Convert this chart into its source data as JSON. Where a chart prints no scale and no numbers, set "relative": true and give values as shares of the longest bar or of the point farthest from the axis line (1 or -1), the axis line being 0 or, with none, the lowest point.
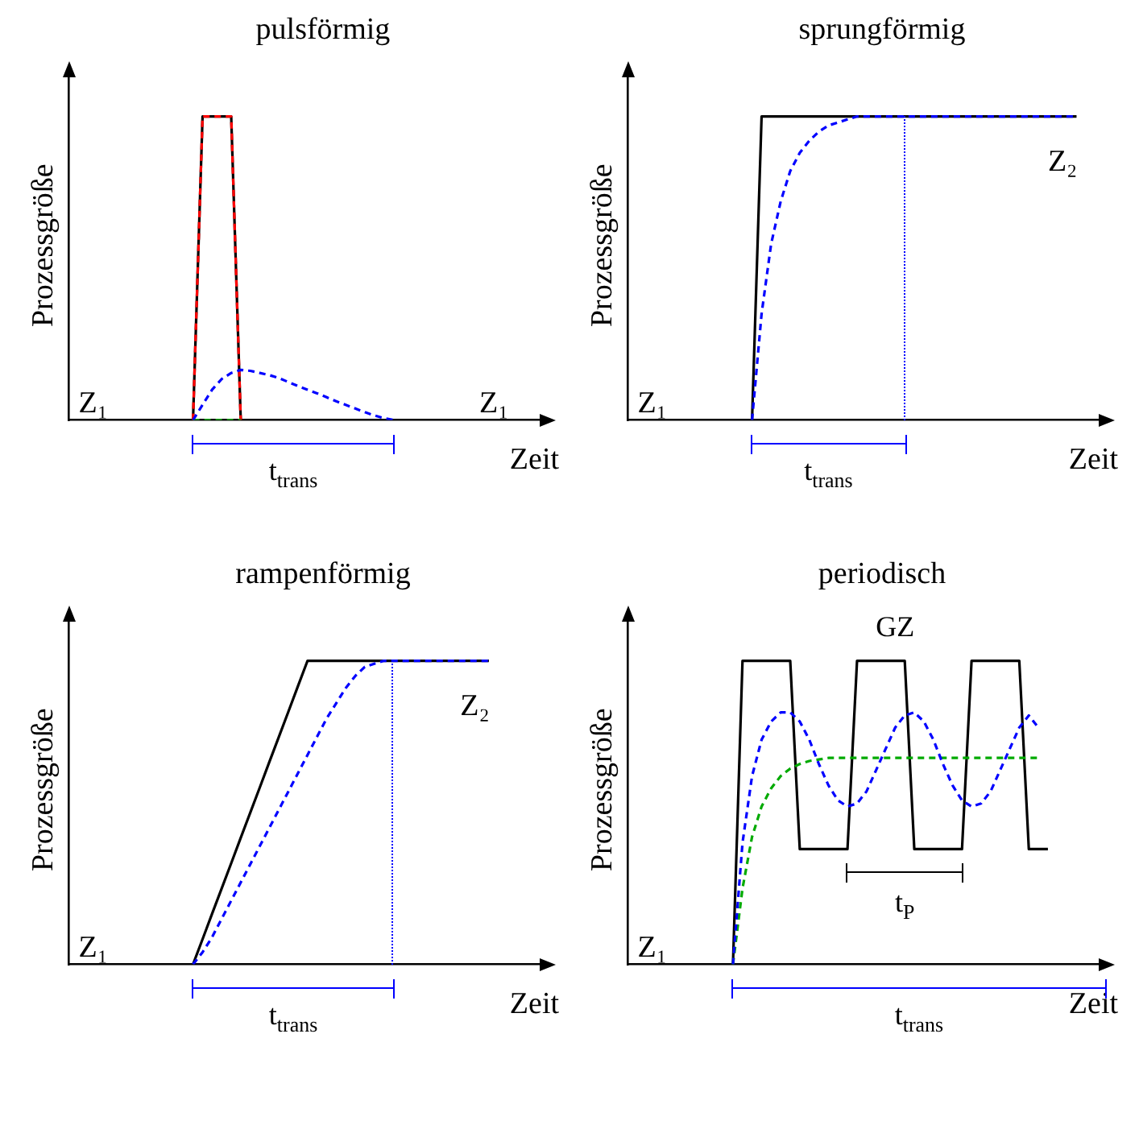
{
  "chart_data": [
    {
      "type": "line",
      "title": "pulsförmig",
      "xlabel": "Zeit",
      "ylabel": "Prozessgröße",
      "relative": true,
      "categories": [
        null,
        null,
        null,
        null,
        null,
        null,
        null,
        null,
        null,
        null,
        null,
        null,
        null,
        null,
        null,
        null,
        null,
        null,
        null,
        null,
        null,
        null,
        null,
        null,
        null,
        null,
        null,
        null,
        null,
        null,
        null,
        null,
        null,
        null,
        null,
        null,
        null,
        null,
        null,
        null,
        null,
        null,
        null,
        null,
        null,
        null,
        null,
        null,
        null,
        null,
        null
      ],
      "series": [
        {
          "color": "#000000",
          "line_style": "solid",
          "values": [
            null,
            null,
            null,
            null,
            null,
            null,
            null,
            null,
            null,
            null,
            null,
            null,
            null,
            0,
            1,
            1,
            1,
            1,
            0,
            null,
            null,
            null,
            null,
            null,
            null,
            null,
            null,
            null,
            null,
            null,
            null,
            null,
            null,
            null,
            null,
            null,
            null,
            null,
            null,
            null,
            null,
            null,
            null,
            null,
            null,
            null,
            null,
            null,
            null,
            null,
            null
          ]
        },
        {
          "color": "#ff0000",
          "line_style": "dashed",
          "values": [
            null,
            null,
            null,
            null,
            null,
            null,
            null,
            null,
            null,
            null,
            null,
            null,
            null,
            0,
            1,
            1,
            1,
            1,
            0,
            null,
            null,
            null,
            null,
            null,
            null,
            null,
            null,
            null,
            null,
            null,
            null,
            null,
            null,
            null,
            null,
            null,
            null,
            null,
            null,
            null,
            null,
            null,
            null,
            null,
            null,
            null,
            null,
            null,
            null,
            null,
            null
          ]
        },
        {
          "color": "#00aa00",
          "line_style": "dashed",
          "values": [
            null,
            null,
            null,
            null,
            null,
            null,
            null,
            null,
            null,
            null,
            null,
            null,
            null,
            0,
            0,
            0,
            0,
            0,
            0,
            null,
            null,
            null,
            null,
            null,
            null,
            null,
            null,
            null,
            null,
            null,
            null,
            null,
            null,
            null,
            null,
            null,
            null,
            null,
            null,
            null,
            null,
            null,
            null,
            null,
            null,
            null,
            null,
            null,
            null,
            null,
            null
          ]
        },
        {
          "color": "#0000ff",
          "line_style": "dashed",
          "values": [
            null,
            null,
            null,
            null,
            null,
            null,
            null,
            null,
            null,
            null,
            null,
            null,
            null,
            0,
            0.05,
            0.1,
            0.135,
            0.155,
            0.165,
            0.162,
            0.155,
            0.148,
            0.138,
            0.125,
            0.112,
            0.1,
            0.088,
            0.075,
            0.062,
            0.05,
            0.038,
            0.026,
            0.015,
            0.006,
            0,
            null,
            null,
            null,
            null,
            null,
            null,
            null,
            null,
            null,
            null,
            null,
            null,
            null,
            null,
            null,
            null
          ]
        }
      ],
      "annotations": [
        "Z₁",
        "Z₁",
        "t$_{trans}$"
      ]
    },
    {
      "type": "line",
      "title": "sprungförmig",
      "xlabel": "Zeit",
      "ylabel": "Prozessgröße",
      "relative": true,
      "categories": [
        null,
        null,
        null,
        null,
        null,
        null,
        null,
        null,
        null,
        null,
        null,
        null,
        null,
        null,
        null,
        null,
        null,
        null,
        null,
        null,
        null,
        null,
        null,
        null,
        null,
        null,
        null,
        null,
        null,
        null,
        null,
        null,
        null,
        null,
        null,
        null,
        null,
        null,
        null,
        null,
        null,
        null,
        null,
        null,
        null,
        null,
        null,
        null,
        null,
        null,
        null
      ],
      "series": [
        {
          "color": "#000000",
          "line_style": "solid",
          "values": [
            null,
            null,
            null,
            null,
            null,
            null,
            null,
            null,
            null,
            null,
            null,
            null,
            null,
            0,
            1,
            1,
            1,
            1,
            1,
            1,
            1,
            1,
            1,
            1,
            1,
            1,
            1,
            1,
            1,
            1,
            1,
            1,
            1,
            1,
            1,
            1,
            1,
            1,
            1,
            1,
            1,
            1,
            1,
            1,
            1,
            1,
            1,
            1,
            null,
            null,
            null
          ]
        },
        {
          "color": "#0000ff",
          "line_style": "dashed",
          "values": [
            null,
            null,
            null,
            null,
            null,
            null,
            null,
            null,
            null,
            null,
            null,
            null,
            null,
            0,
            0.35,
            0.58,
            0.72,
            0.82,
            0.88,
            0.92,
            0.95,
            0.97,
            0.98,
            0.99,
            1,
            1,
            1,
            1,
            1,
            1,
            1,
            1,
            1,
            1,
            1,
            1,
            1,
            1,
            1,
            1,
            1,
            1,
            1,
            1,
            1,
            1,
            1,
            1,
            null,
            null,
            null
          ]
        }
      ],
      "annotations": [
        "Z₁",
        "Z₂",
        "t$_{trans}$"
      ]
    },
    {
      "type": "line",
      "title": "rampenförmig",
      "xlabel": "Zeit",
      "ylabel": "Prozessgröße",
      "relative": true,
      "categories": [
        null,
        null,
        null,
        null,
        null,
        null,
        null,
        null,
        null,
        null,
        null,
        null,
        null,
        null,
        null,
        null,
        null,
        null,
        null,
        null,
        null,
        null,
        null,
        null,
        null,
        null,
        null,
        null,
        null,
        null,
        null,
        null,
        null,
        null,
        null,
        null,
        null,
        null,
        null,
        null,
        null,
        null,
        null,
        null,
        null,
        null,
        null,
        null,
        null,
        null,
        null
      ],
      "series": [
        {
          "color": "#000000",
          "line_style": "solid",
          "values": [
            null,
            null,
            null,
            null,
            null,
            null,
            null,
            null,
            null,
            null,
            null,
            null,
            null,
            0,
            0.083,
            0.167,
            0.25,
            0.333,
            0.417,
            0.5,
            0.583,
            0.667,
            0.75,
            0.833,
            0.917,
            1,
            1,
            1,
            1,
            1,
            1,
            1,
            1,
            1,
            1,
            1,
            1,
            1,
            1,
            1,
            1,
            1,
            1,
            1,
            1,
            null,
            null,
            null,
            null,
            null,
            null
          ]
        },
        {
          "color": "#0000ff",
          "line_style": "dashed",
          "values": [
            null,
            null,
            null,
            null,
            null,
            null,
            null,
            null,
            null,
            null,
            null,
            null,
            null,
            0,
            0.04,
            0.09,
            0.15,
            0.21,
            0.27,
            0.33,
            0.39,
            0.45,
            0.51,
            0.57,
            0.63,
            0.69,
            0.75,
            0.81,
            0.86,
            0.91,
            0.95,
            0.98,
            0.99,
            1,
            1,
            1,
            1,
            1,
            1,
            1,
            1,
            1,
            1,
            1,
            1,
            null,
            null,
            null,
            null,
            null,
            null
          ]
        }
      ],
      "annotations": [
        "Z₁",
        "Z₂",
        "t$_{trans}$"
      ]
    },
    {
      "type": "line",
      "title": "periodisch",
      "xlabel": "Zeit",
      "ylabel": "Prozessgröße",
      "relative": true,
      "categories": [
        null,
        null,
        null,
        null,
        null,
        null,
        null,
        null,
        null,
        null,
        null,
        null,
        null,
        null,
        null,
        null,
        null,
        null,
        null,
        null,
        null,
        null,
        null,
        null,
        null,
        null,
        null,
        null,
        null,
        null,
        null,
        null,
        null,
        null,
        null,
        null,
        null,
        null,
        null,
        null,
        null,
        null,
        null,
        null,
        null,
        null,
        null,
        null,
        null,
        null,
        null
      ],
      "series": [
        {
          "color": "#000000",
          "line_style": "solid",
          "values": [
            null,
            null,
            null,
            null,
            null,
            null,
            null,
            null,
            null,
            null,
            null,
            0,
            1,
            1,
            1,
            1,
            1,
            1,
            0.38,
            0.38,
            0.38,
            0.38,
            0.38,
            0.38,
            1,
            1,
            1,
            1,
            1,
            1,
            0.38,
            0.38,
            0.38,
            0.38,
            0.38,
            0.38,
            1,
            1,
            1,
            1,
            1,
            1,
            0.38,
            0.38,
            0.38,
            null,
            null,
            null,
            null,
            null,
            null
          ]
        },
        {
          "color": "#00aa00",
          "line_style": "dashed",
          "values": [
            null,
            null,
            null,
            null,
            null,
            null,
            null,
            null,
            null,
            null,
            null,
            0,
            0.25,
            0.42,
            0.52,
            0.58,
            0.62,
            0.645,
            0.66,
            0.67,
            0.675,
            0.68,
            0.68,
            0.68,
            0.68,
            0.68,
            0.68,
            0.68,
            0.68,
            0.68,
            0.68,
            0.68,
            0.68,
            0.68,
            0.68,
            0.68,
            0.68,
            0.68,
            0.68,
            0.68,
            0.68,
            0.68,
            0.68,
            0.68,
            null,
            null,
            null,
            null,
            null,
            null,
            null
          ]
        },
        {
          "color": "#0000ff",
          "line_style": "dashed",
          "values": [
            null,
            null,
            null,
            null,
            null,
            null,
            null,
            null,
            null,
            null,
            null,
            0,
            0.4,
            0.62,
            0.74,
            0.8,
            0.83,
            0.83,
            0.8,
            0.74,
            0.66,
            0.59,
            0.54,
            0.52,
            0.53,
            0.57,
            0.64,
            0.71,
            0.78,
            0.82,
            0.83,
            0.8,
            0.74,
            0.66,
            0.59,
            0.54,
            0.52,
            0.53,
            0.57,
            0.64,
            0.71,
            0.78,
            0.82,
            0.78,
            null,
            null,
            null,
            null,
            null,
            null,
            null
          ]
        }
      ],
      "annotations": [
        "Z₁",
        "GZ",
        "t$_{trans}$",
        "t$_{P}$"
      ]
    }
  ]
}
